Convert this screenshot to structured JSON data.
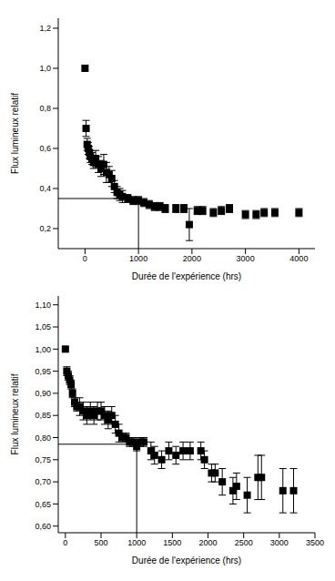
{
  "chart_data": [
    {
      "type": "scatter",
      "x_label": "Durée de l'expérience (hrs)",
      "y_label": "Flux lumineux relatif",
      "color": "#000000",
      "marker": "square",
      "xlim": [
        -500,
        4300
      ],
      "xticks": [
        0,
        1000,
        2000,
        3000,
        4000
      ],
      "ylim": [
        0.1,
        1.25
      ],
      "yticks": [
        {
          "value": 0.2,
          "label": "0,2"
        },
        {
          "value": 0.4,
          "label": "0,4"
        },
        {
          "value": 0.6,
          "label": "0,6"
        },
        {
          "value": 0.8,
          "label": "0,8"
        },
        {
          "value": 1.0,
          "label": "1,0"
        },
        {
          "value": 1.2,
          "label": "1,2"
        }
      ],
      "x": [
        0,
        20,
        40,
        60,
        80,
        100,
        130,
        160,
        200,
        250,
        300,
        350,
        400,
        450,
        500,
        550,
        600,
        650,
        700,
        800,
        900,
        1000,
        1100,
        1200,
        1300,
        1400,
        1500,
        1700,
        1850,
        1950,
        2100,
        2200,
        2400,
        2550,
        2700,
        3000,
        3200,
        3350,
        3550,
        4000
      ],
      "values": [
        1.0,
        0.7,
        0.62,
        0.6,
        0.58,
        0.56,
        0.55,
        0.53,
        0.55,
        0.52,
        0.5,
        0.52,
        0.48,
        0.47,
        0.45,
        0.41,
        0.38,
        0.37,
        0.36,
        0.35,
        0.34,
        0.34,
        0.33,
        0.32,
        0.31,
        0.31,
        0.3,
        0.3,
        0.3,
        0.22,
        0.29,
        0.29,
        0.28,
        0.29,
        0.3,
        0.27,
        0.27,
        0.28,
        0.28,
        0.28
      ],
      "errors": [
        0,
        0.04,
        0.03,
        0.03,
        0.03,
        0.03,
        0.03,
        0.03,
        0.04,
        0.04,
        0.04,
        0.05,
        0.05,
        0.04,
        0.04,
        0.03,
        0.03,
        0.03,
        0.03,
        0.02,
        0.02,
        0.02,
        0.02,
        0.02,
        0.02,
        0.02,
        0.02,
        0.02,
        0.02,
        0.08,
        0.02,
        0.02,
        0.02,
        0.02,
        0.02,
        0.02,
        0.02,
        0.02,
        0.02,
        0.02
      ],
      "guide": {
        "x": 1000,
        "y": 0.35
      }
    },
    {
      "type": "scatter",
      "x_label": "Durée de l'expérience (hrs)",
      "y_label": "Flux lumineux relatif",
      "color": "#000000",
      "marker": "square",
      "xlim": [
        -100,
        3500
      ],
      "xticks": [
        0,
        500,
        1000,
        1500,
        2000,
        2500,
        3000,
        3500
      ],
      "ylim": [
        0.585,
        1.12
      ],
      "yticks": [
        {
          "value": 0.6,
          "label": "0,60"
        },
        {
          "value": 0.65,
          "label": "0,65"
        },
        {
          "value": 0.7,
          "label": "0,70"
        },
        {
          "value": 0.75,
          "label": "0,75"
        },
        {
          "value": 0.8,
          "label": "0,80"
        },
        {
          "value": 0.85,
          "label": "0,85"
        },
        {
          "value": 0.9,
          "label": "0,90"
        },
        {
          "value": 0.95,
          "label": "0,95"
        },
        {
          "value": 1.0,
          "label": "1,00"
        },
        {
          "value": 1.05,
          "label": "1,05"
        },
        {
          "value": 1.1,
          "label": "1,10"
        }
      ],
      "x": [
        0,
        20,
        40,
        60,
        80,
        100,
        130,
        160,
        200,
        250,
        300,
        350,
        400,
        450,
        500,
        550,
        600,
        650,
        700,
        750,
        800,
        850,
        900,
        950,
        1000,
        1050,
        1100,
        1200,
        1250,
        1350,
        1450,
        1550,
        1650,
        1750,
        1900,
        1950,
        2050,
        2100,
        2200,
        2350,
        2400,
        2550,
        2700,
        2750,
        3050,
        3200
      ],
      "values": [
        1.0,
        0.95,
        0.94,
        0.93,
        0.92,
        0.9,
        0.88,
        0.87,
        0.87,
        0.86,
        0.85,
        0.86,
        0.85,
        0.86,
        0.86,
        0.85,
        0.84,
        0.85,
        0.83,
        0.81,
        0.8,
        0.8,
        0.79,
        0.79,
        0.78,
        0.79,
        0.79,
        0.77,
        0.76,
        0.75,
        0.77,
        0.76,
        0.77,
        0.77,
        0.77,
        0.75,
        0.72,
        0.72,
        0.7,
        0.68,
        0.69,
        0.67,
        0.71,
        0.71,
        0.68,
        0.68
      ],
      "errors": [
        0,
        0.01,
        0.01,
        0.01,
        0.01,
        0.01,
        0.01,
        0.01,
        0.02,
        0.02,
        0.02,
        0.02,
        0.02,
        0.02,
        0.02,
        0.02,
        0.02,
        0.02,
        0.02,
        0.02,
        0.01,
        0.01,
        0.01,
        0.01,
        0.01,
        0.01,
        0.01,
        0.02,
        0.02,
        0.02,
        0.02,
        0.02,
        0.02,
        0.02,
        0.02,
        0.02,
        0.02,
        0.02,
        0.03,
        0.03,
        0.03,
        0.04,
        0.05,
        0.05,
        0.05,
        0.05
      ],
      "guide": {
        "x": 1000,
        "y": 0.785
      }
    }
  ]
}
